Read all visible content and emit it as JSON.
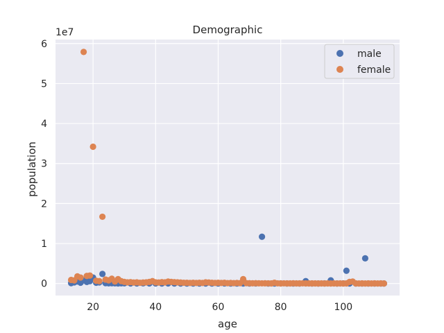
{
  "chart_data": {
    "type": "scatter",
    "title": "Demographic",
    "xlabel": "age",
    "ylabel": "population",
    "y_offset_label": "1e7",
    "xlim": [
      8,
      118
    ],
    "ylim": [
      -3000000,
      61000000
    ],
    "x_ticks": [
      20,
      40,
      60,
      80,
      100
    ],
    "y_ticks": [
      0,
      10000000,
      20000000,
      30000000,
      40000000,
      50000000,
      60000000
    ],
    "y_tick_labels": [
      "0",
      "1",
      "2",
      "3",
      "4",
      "5",
      "6"
    ],
    "grid": true,
    "legend_position": "top-right",
    "series": [
      {
        "name": "male",
        "color": "#4c72b0",
        "points": [
          [
            13,
            100000
          ],
          [
            14,
            300000
          ],
          [
            15,
            500000
          ],
          [
            16,
            200000
          ],
          [
            17,
            800000
          ],
          [
            18,
            400000
          ],
          [
            19,
            600000
          ],
          [
            20,
            1500000
          ],
          [
            21,
            200000
          ],
          [
            22,
            300000
          ],
          [
            23,
            2400000
          ],
          [
            24,
            100000
          ],
          [
            25,
            50000
          ],
          [
            26,
            80000
          ],
          [
            27,
            60000
          ],
          [
            28,
            40000
          ],
          [
            29,
            50000
          ],
          [
            30,
            60000
          ],
          [
            32,
            40000
          ],
          [
            34,
            30000
          ],
          [
            36,
            50000
          ],
          [
            38,
            40000
          ],
          [
            40,
            30000
          ],
          [
            42,
            20000
          ],
          [
            44,
            30000
          ],
          [
            46,
            20000
          ],
          [
            48,
            10000
          ],
          [
            50,
            20000
          ],
          [
            52,
            10000
          ],
          [
            54,
            20000
          ],
          [
            56,
            10000
          ],
          [
            58,
            20000
          ],
          [
            60,
            10000
          ],
          [
            62,
            30000
          ],
          [
            64,
            20000
          ],
          [
            66,
            10000
          ],
          [
            68,
            20000
          ],
          [
            70,
            10000
          ],
          [
            72,
            30000
          ],
          [
            74,
            11700000
          ],
          [
            76,
            20000
          ],
          [
            78,
            10000
          ],
          [
            80,
            30000
          ],
          [
            82,
            20000
          ],
          [
            84,
            10000
          ],
          [
            86,
            20000
          ],
          [
            88,
            600000
          ],
          [
            90,
            20000
          ],
          [
            92,
            10000
          ],
          [
            94,
            30000
          ],
          [
            96,
            800000
          ],
          [
            98,
            20000
          ],
          [
            100,
            30000
          ],
          [
            101,
            3200000
          ],
          [
            102,
            20000
          ],
          [
            104,
            10000
          ],
          [
            106,
            20000
          ],
          [
            107,
            6300000
          ],
          [
            108,
            10000
          ],
          [
            110,
            20000
          ],
          [
            112,
            10000
          ],
          [
            113,
            20000
          ]
        ]
      },
      {
        "name": "female",
        "color": "#dd8452",
        "points": [
          [
            13,
            900000
          ],
          [
            14,
            800000
          ],
          [
            15,
            1800000
          ],
          [
            16,
            1500000
          ],
          [
            17,
            57900000
          ],
          [
            18,
            1900000
          ],
          [
            19,
            2000000
          ],
          [
            20,
            34200000
          ],
          [
            21,
            700000
          ],
          [
            22,
            600000
          ],
          [
            23,
            16700000
          ],
          [
            24,
            1000000
          ],
          [
            25,
            800000
          ],
          [
            26,
            1200000
          ],
          [
            27,
            500000
          ],
          [
            28,
            1100000
          ],
          [
            29,
            600000
          ],
          [
            30,
            400000
          ],
          [
            31,
            300000
          ],
          [
            32,
            350000
          ],
          [
            33,
            250000
          ],
          [
            34,
            300000
          ],
          [
            35,
            200000
          ],
          [
            36,
            250000
          ],
          [
            37,
            300000
          ],
          [
            38,
            400000
          ],
          [
            39,
            600000
          ],
          [
            40,
            300000
          ],
          [
            41,
            250000
          ],
          [
            42,
            350000
          ],
          [
            43,
            300000
          ],
          [
            44,
            500000
          ],
          [
            45,
            400000
          ],
          [
            46,
            350000
          ],
          [
            47,
            300000
          ],
          [
            48,
            250000
          ],
          [
            49,
            200000
          ],
          [
            50,
            200000
          ],
          [
            51,
            150000
          ],
          [
            52,
            200000
          ],
          [
            53,
            150000
          ],
          [
            54,
            200000
          ],
          [
            55,
            150000
          ],
          [
            56,
            300000
          ],
          [
            57,
            250000
          ],
          [
            58,
            200000
          ],
          [
            59,
            150000
          ],
          [
            60,
            200000
          ],
          [
            61,
            150000
          ],
          [
            62,
            200000
          ],
          [
            63,
            100000
          ],
          [
            64,
            150000
          ],
          [
            65,
            100000
          ],
          [
            66,
            150000
          ],
          [
            67,
            100000
          ],
          [
            68,
            1100000
          ],
          [
            69,
            100000
          ],
          [
            70,
            80000
          ],
          [
            71,
            60000
          ],
          [
            72,
            80000
          ],
          [
            73,
            60000
          ],
          [
            74,
            50000
          ],
          [
            75,
            60000
          ],
          [
            76,
            50000
          ],
          [
            77,
            40000
          ],
          [
            78,
            200000
          ],
          [
            79,
            50000
          ],
          [
            80,
            40000
          ],
          [
            81,
            50000
          ],
          [
            82,
            40000
          ],
          [
            83,
            30000
          ],
          [
            84,
            60000
          ],
          [
            85,
            40000
          ],
          [
            86,
            30000
          ],
          [
            87,
            50000
          ],
          [
            88,
            40000
          ],
          [
            89,
            30000
          ],
          [
            90,
            40000
          ],
          [
            91,
            30000
          ],
          [
            92,
            20000
          ],
          [
            93,
            30000
          ],
          [
            94,
            20000
          ],
          [
            95,
            30000
          ],
          [
            96,
            20000
          ],
          [
            97,
            30000
          ],
          [
            98,
            20000
          ],
          [
            99,
            30000
          ],
          [
            100,
            20000
          ],
          [
            101,
            30000
          ],
          [
            102,
            400000
          ],
          [
            103,
            500000
          ],
          [
            104,
            30000
          ],
          [
            105,
            20000
          ],
          [
            106,
            30000
          ],
          [
            107,
            20000
          ],
          [
            108,
            30000
          ],
          [
            109,
            20000
          ],
          [
            110,
            30000
          ],
          [
            111,
            20000
          ],
          [
            112,
            30000
          ],
          [
            113,
            20000
          ]
        ]
      }
    ]
  }
}
